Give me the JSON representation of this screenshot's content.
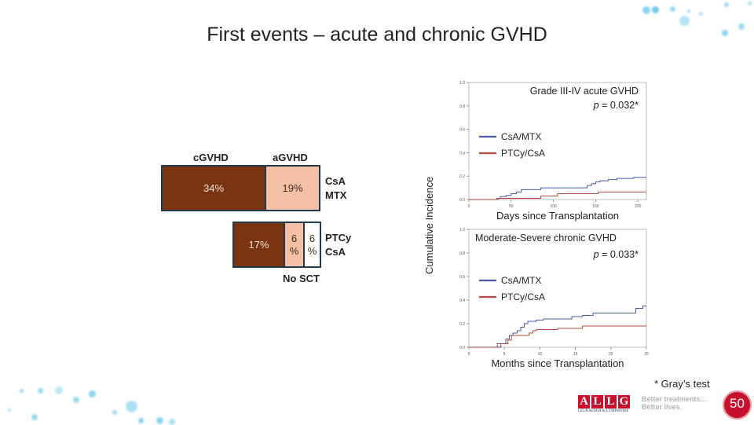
{
  "slide": {
    "title": "First events – acute and chronic GVHD",
    "y_axis_label": "Cumulative Incidence",
    "footnote": "* Gray’s test",
    "logo": {
      "letters": [
        "A",
        "L",
        "L",
        "G"
      ],
      "subtitle": "LEUKAEMIA & LYMPHOMA",
      "tagline_line1": "Better treatments...",
      "tagline_line2": "Better lives.",
      "anniversary": "50"
    }
  },
  "bar_diagram": {
    "header_chronic": "cGVHD",
    "header_acute": "aGVHD",
    "no_sct_label": "No SCT",
    "colors": {
      "chronic": "#7a3410",
      "acute": "#f5c0a6",
      "no_sct": "#ffffff",
      "border": "#1f3b4d"
    },
    "rows": [
      {
        "arm_line1": "CsA",
        "arm_line2": "MTX",
        "cgvhd": "34%",
        "agvhd": "19%",
        "no_sct": null,
        "values": {
          "cgvhd": 34,
          "agvhd": 19,
          "no_sct": 0
        }
      },
      {
        "arm_line1": "PTCy",
        "arm_line2": "CsA",
        "cgvhd": "17%",
        "agvhd_num": "6",
        "agvhd_pct": "%",
        "no_sct_num": "6",
        "no_sct_pct": "%",
        "values": {
          "cgvhd": 17,
          "agvhd": 6,
          "no_sct": 6
        }
      }
    ]
  },
  "chart_data": [
    {
      "type": "line",
      "step": true,
      "title": "Grade III-IV acute GVHD",
      "annotation": "p = 0.032*",
      "p_prefix": "p",
      "p_value": "= 0.032*",
      "xlabel": "Days since Transplantation",
      "ylabel": "Cumulative Incidence",
      "xlim": [
        0,
        210
      ],
      "ylim": [
        0,
        1.0
      ],
      "xticks": [
        0,
        50,
        100,
        150,
        200
      ],
      "yticks": [
        0.0,
        0.2,
        0.4,
        0.6,
        0.8,
        1.0
      ],
      "ytick_labels": [
        "0.0",
        "0.2",
        "0.4",
        "0.6",
        "0.8",
        "1.0"
      ],
      "legend": "middle-left",
      "series": [
        {
          "name": "CsA/MTX",
          "color": "#4a5aa8",
          "x": [
            0,
            33,
            37,
            44,
            50,
            56,
            62,
            85,
            140,
            145,
            150,
            155,
            165,
            175,
            195,
            210
          ],
          "y": [
            0,
            0.01,
            0.025,
            0.035,
            0.05,
            0.065,
            0.085,
            0.1,
            0.12,
            0.135,
            0.15,
            0.16,
            0.17,
            0.18,
            0.19,
            0.19
          ]
        },
        {
          "name": "PTCy/CsA",
          "color": "#b84a3c",
          "x": [
            0,
            35,
            85,
            105,
            153,
            210
          ],
          "y": [
            0,
            0.01,
            0.03,
            0.05,
            0.065,
            0.065
          ]
        }
      ]
    },
    {
      "type": "line",
      "step": true,
      "title": "Moderate-Severe chronic GVHD",
      "annotation": "p = 0.033*",
      "p_prefix": "p",
      "p_value": "= 0.033*",
      "xlabel": "Months since Transplantation",
      "ylabel": "Cumulative Incidence",
      "xlim": [
        0,
        25
      ],
      "ylim": [
        0,
        1.0
      ],
      "xticks": [
        0,
        5,
        10,
        15,
        20,
        25
      ],
      "yticks": [
        0.0,
        0.2,
        0.4,
        0.6,
        0.8,
        1.0
      ],
      "ytick_labels": [
        "0.0",
        "0.2",
        "0.4",
        "0.6",
        "0.8",
        "1.0"
      ],
      "legend": "middle-left",
      "series": [
        {
          "name": "CsA/MTX",
          "color": "#4a5aa8",
          "x": [
            0,
            4.5,
            5.2,
            5.7,
            6.2,
            6.8,
            7.3,
            7.8,
            8.3,
            9.5,
            10.5,
            14.5,
            16,
            17.5,
            23.5,
            24.5,
            25
          ],
          "y": [
            0,
            0.03,
            0.07,
            0.1,
            0.12,
            0.14,
            0.17,
            0.2,
            0.22,
            0.23,
            0.24,
            0.26,
            0.27,
            0.29,
            0.33,
            0.35,
            0.35
          ]
        },
        {
          "name": "PTCy/CsA",
          "color": "#b84a3c",
          "x": [
            0,
            4.0,
            5.5,
            6.0,
            8.5,
            9.0,
            9.5,
            12.5,
            16.0,
            25
          ],
          "y": [
            0,
            0.03,
            0.06,
            0.1,
            0.12,
            0.14,
            0.15,
            0.16,
            0.18,
            0.18
          ]
        }
      ]
    }
  ]
}
